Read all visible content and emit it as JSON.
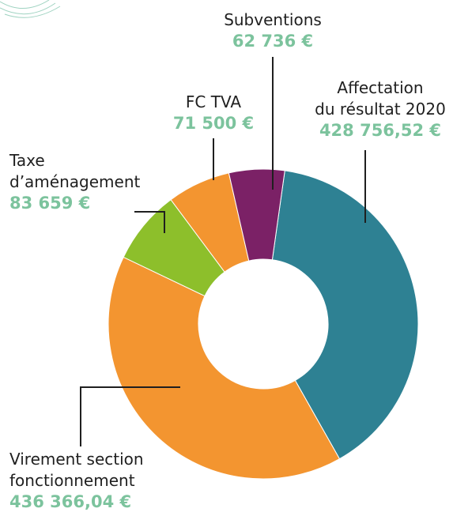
{
  "chart_data": {
    "type": "donut",
    "categories": [
      "Affectation du résultat 2020",
      "Virement section fonctionnement",
      "Taxe d’aménagement",
      "FC TVA",
      "Subventions"
    ],
    "values": [
      428756.52,
      436366.04,
      83659,
      71500,
      62736
    ],
    "value_labels": [
      "428 756,52 €",
      "436 366,04 €",
      "83 659 €",
      "71 500 €",
      "62 736 €"
    ],
    "colors": [
      "#2e8193",
      "#f39530",
      "#8dbf2b",
      "#f39530",
      "#7b2166"
    ]
  }
}
